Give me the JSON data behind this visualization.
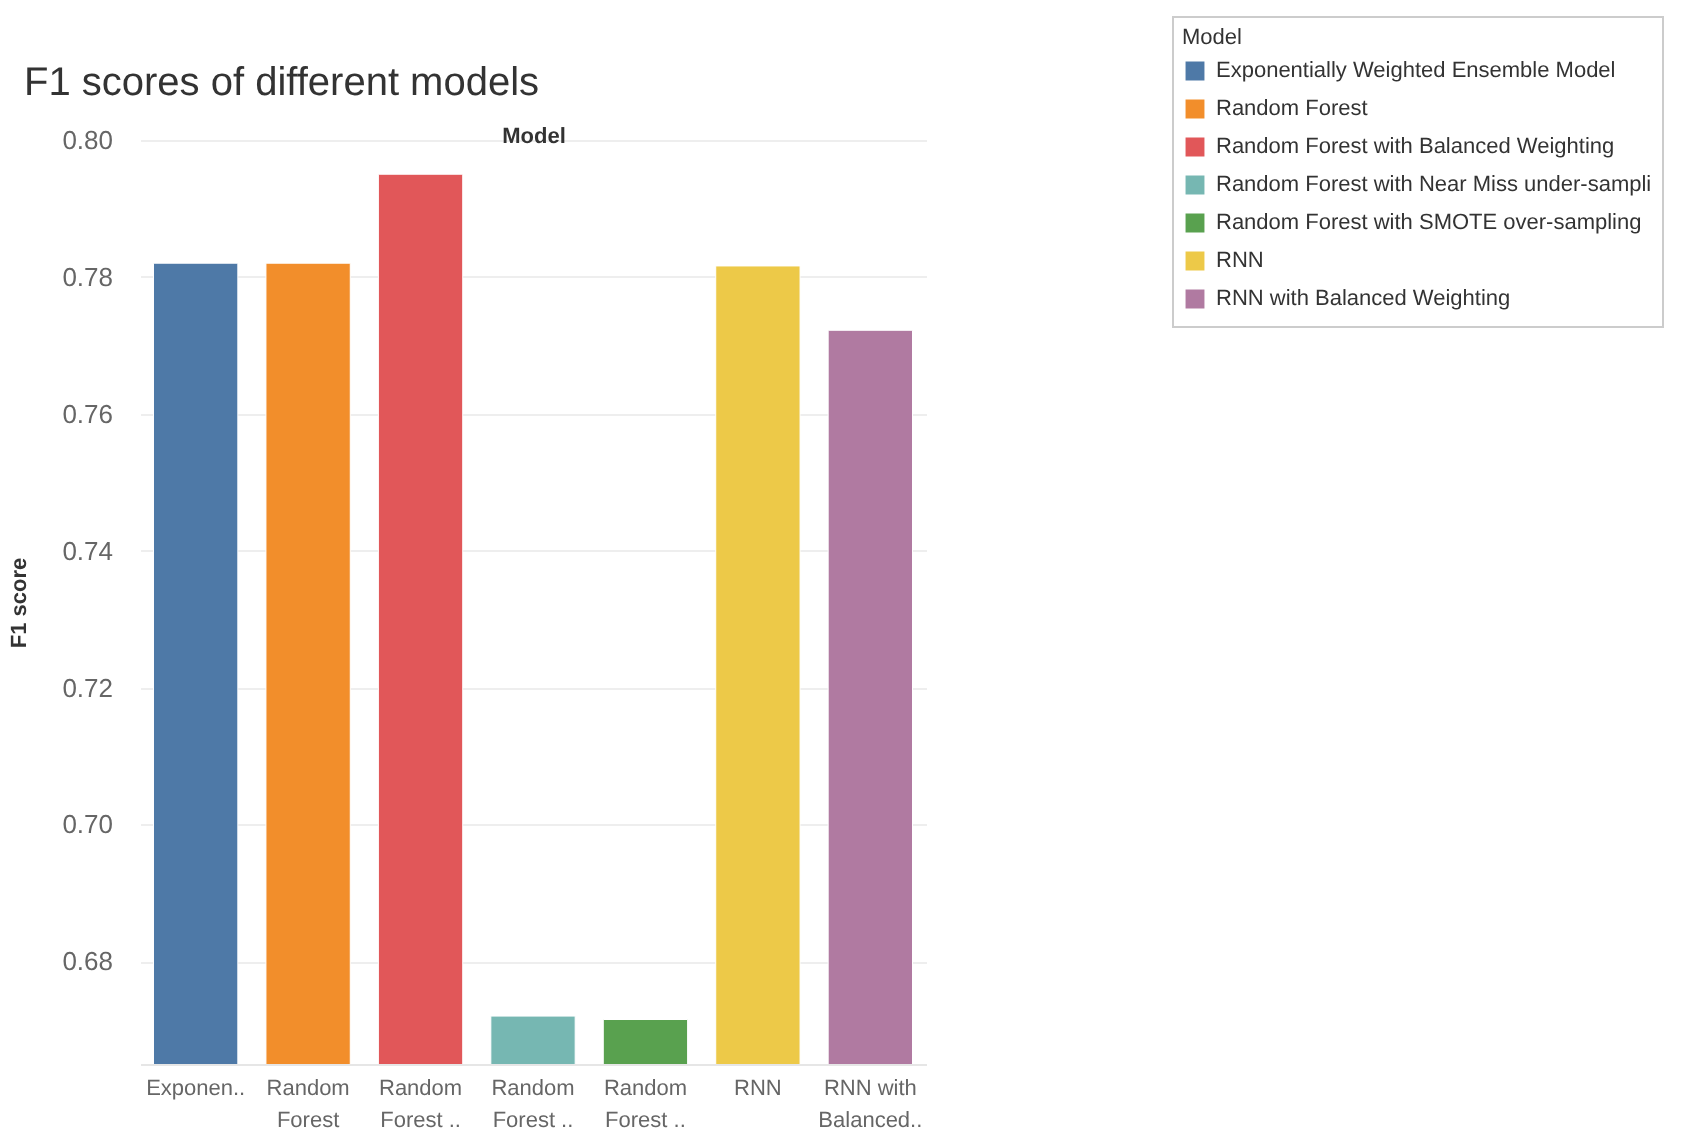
{
  "chart_data": {
    "type": "bar",
    "title": "F1 scores of different models",
    "xlabel": "Model",
    "ylabel": "F1 score",
    "legend_title": "Model",
    "categories": [
      "Exponen..",
      "Random Forest",
      "Random Forest ..",
      "Random Forest ..",
      "Random Forest ..",
      "RNN",
      "RNN with Balanced.."
    ],
    "series": [
      {
        "name": "Exponentially Weighted Ensemble Model",
        "color": "#4e79a7",
        "values": [
          0.782,
          null,
          null,
          null,
          null,
          null,
          null
        ]
      },
      {
        "name": "Random Forest",
        "color": "#f28e2b",
        "values": [
          null,
          0.782,
          null,
          null,
          null,
          null,
          null
        ]
      },
      {
        "name": "Random Forest  with Balanced Weighting",
        "color": "#e15759",
        "values": [
          null,
          null,
          0.795,
          null,
          null,
          null,
          null
        ]
      },
      {
        "name": "Random Forest with Near Miss under-sampli",
        "color": "#76b7b2",
        "values": [
          null,
          null,
          null,
          0.672,
          null,
          null,
          null
        ]
      },
      {
        "name": "Random Forest  with SMOTE over-sampling",
        "color": "#59a14f",
        "values": [
          null,
          null,
          null,
          null,
          0.6715,
          null,
          null
        ]
      },
      {
        "name": "RNN",
        "color": "#edc948",
        "values": [
          null,
          null,
          null,
          null,
          null,
          0.7816,
          null
        ]
      },
      {
        "name": "RNN  with Balanced Weighting",
        "color": "#b07aa1",
        "values": [
          null,
          null,
          null,
          null,
          null,
          null,
          0.7722
        ]
      }
    ],
    "ylim": [
      0.665,
      0.8
    ],
    "yticks": [
      {
        "value": 0.68,
        "label": "0.68"
      },
      {
        "value": 0.7,
        "label": "0.70"
      },
      {
        "value": 0.72,
        "label": "0.72"
      },
      {
        "value": 0.74,
        "label": "0.74"
      },
      {
        "value": 0.76,
        "label": "0.76"
      },
      {
        "value": 0.78,
        "label": "0.78"
      },
      {
        "value": 0.8,
        "label": "0.80"
      }
    ],
    "grid": "y",
    "legend": "top right"
  }
}
